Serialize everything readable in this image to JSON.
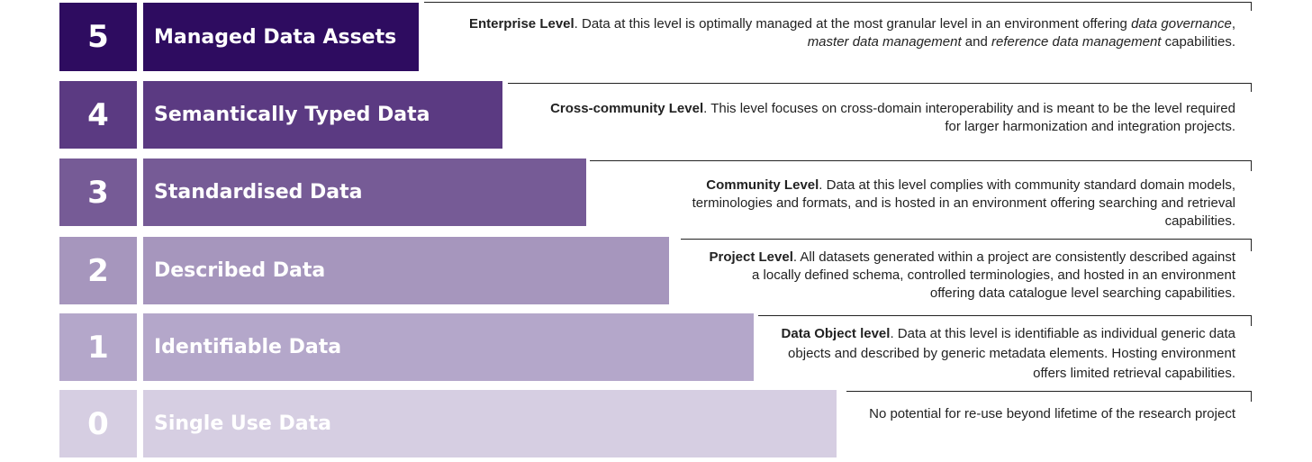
{
  "colors": {
    "level5": "#2e0c60",
    "level4": "#5b3a82",
    "level3": "#765b96",
    "level2": "#a696bd",
    "level1": "#b4a7ca",
    "level0": "#d6cee2"
  },
  "levels": [
    {
      "number": "5",
      "title": "Managed Data Assets",
      "desc_bold": "Enterprise Level",
      "desc_text_1": ". Data at this level is optimally managed at the most granular level in an environment offering ",
      "desc_italic_1": "data governance",
      "desc_text_2": ", ",
      "desc_italic_2": "master data management",
      "desc_text_3": " and ",
      "desc_italic_3": "reference data management",
      "desc_text_4": " capabilities."
    },
    {
      "number": "4",
      "title": "Semantically Typed Data",
      "desc_bold": "Cross-community Level",
      "desc_text": ". This level focuses on cross-domain interoperability and is meant to be the level required for larger harmonization and integration projects."
    },
    {
      "number": "3",
      "title": "Standardised Data",
      "desc_bold": "Community Level",
      "desc_text": ". Data at this level complies with community standard domain models, terminologies and formats, and is hosted in an environment offering searching and retrieval capabilities."
    },
    {
      "number": "2",
      "title": "Described Data",
      "desc_bold": "Project Level",
      "desc_text": ". All datasets generated within a project are consistently described against a locally defined schema, controlled terminologies, and hosted in an environment offering data catalogue level searching capabilities."
    },
    {
      "number": "1",
      "title": "Identifiable Data",
      "desc_bold": "Data Object level",
      "desc_text": ". Data at this level is identifiable as individual generic data objects and described by generic metadata elements. Hosting environment offers limited retrieval capabilities."
    },
    {
      "number": "0",
      "title": "Single Use Data",
      "desc_bold": "",
      "desc_text": "No potential for re-use beyond lifetime of the research project"
    }
  ]
}
